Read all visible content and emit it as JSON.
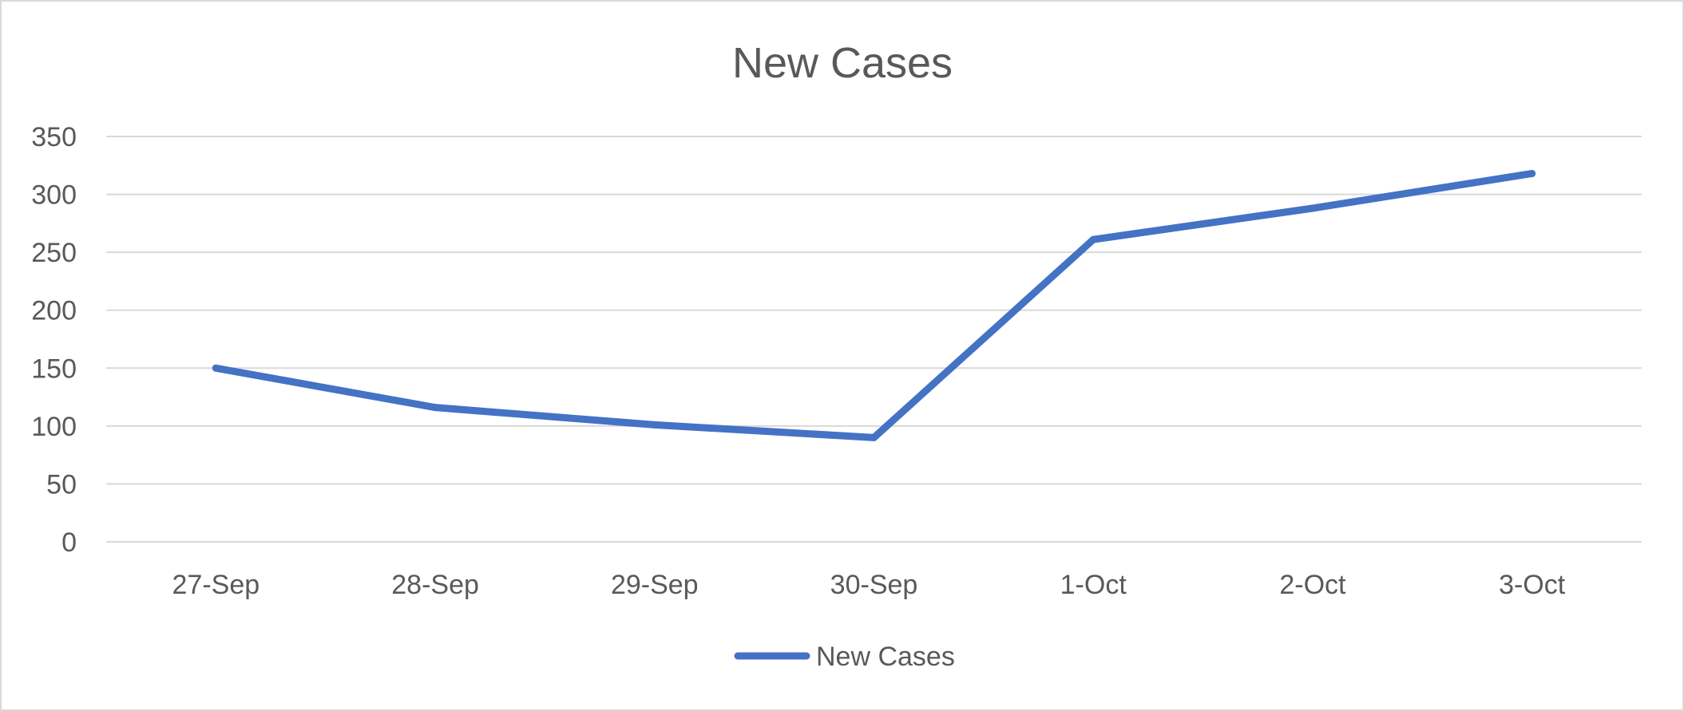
{
  "chart_data": {
    "type": "line",
    "title": "New Cases",
    "xlabel": "",
    "ylabel": "",
    "categories": [
      "27-Sep",
      "28-Sep",
      "29-Sep",
      "30-Sep",
      "1-Oct",
      "2-Oct",
      "3-Oct"
    ],
    "series": [
      {
        "name": "New Cases",
        "values": [
          150,
          116,
          101,
          90,
          261,
          288,
          318
        ],
        "color": "#4472c4"
      }
    ],
    "ylim": [
      0,
      350
    ],
    "yticks": [
      0,
      50,
      100,
      150,
      200,
      250,
      300,
      350
    ],
    "grid": true,
    "legend_position": "bottom"
  }
}
